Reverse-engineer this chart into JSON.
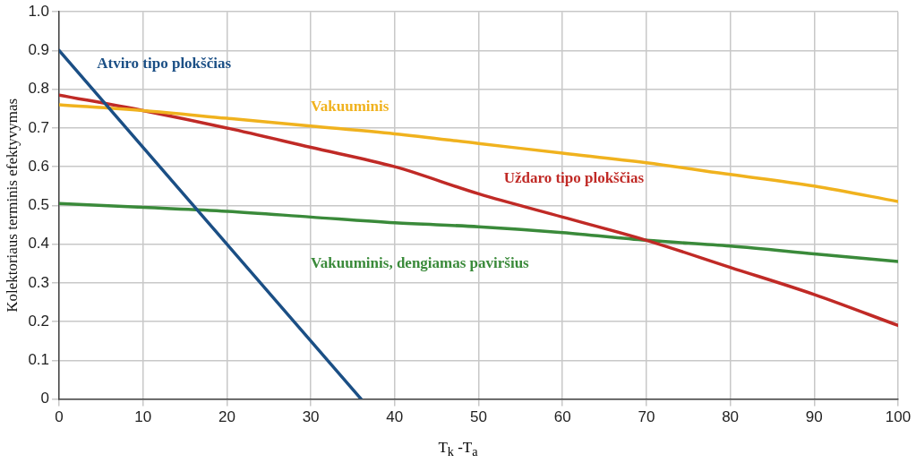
{
  "chart_data": {
    "type": "line",
    "xlabel": "T$_{k}$ -T$_{a}$",
    "ylabel": "Kolektoriaus terminis efektyvymas",
    "xlim": [
      0,
      100
    ],
    "xticks": [
      0,
      10,
      20,
      30,
      40,
      50,
      60,
      70,
      80,
      90,
      100
    ],
    "ylim": [
      0,
      1
    ],
    "yticks": [
      0,
      0.1,
      0.2,
      0.3,
      0.4,
      0.5,
      0.6,
      0.7,
      0.8,
      0.9,
      {
        "value": 1,
        "label": "1.0"
      }
    ],
    "grid": true,
    "legend": false,
    "marker": "none",
    "line_style": "solid",
    "series": [
      {
        "name": "Atviro tipo plokščias",
        "color": "#1b4f85",
        "x": [
          0,
          36
        ],
        "values": [
          0.9,
          0
        ]
      },
      {
        "name": "Vakuuminis",
        "color": "#f0b21e",
        "x": [
          0,
          10,
          20,
          30,
          40,
          50,
          60,
          70,
          80,
          90,
          100
        ],
        "values": [
          0.76,
          0.745,
          0.725,
          0.705,
          0.685,
          0.66,
          0.635,
          0.61,
          0.58,
          0.55,
          0.51
        ]
      },
      {
        "name": "Uždaro tipo plokščias",
        "color": "#c02a26",
        "x": [
          0,
          10,
          20,
          30,
          40,
          50,
          60,
          70,
          80,
          90,
          100
        ],
        "values": [
          0.785,
          0.745,
          0.7,
          0.65,
          0.6,
          0.53,
          0.47,
          0.41,
          0.34,
          0.27,
          0.19
        ]
      },
      {
        "name": "Vakuuminis, dengiamas paviršius",
        "color": "#3a8a3a",
        "x": [
          0,
          10,
          20,
          30,
          40,
          50,
          60,
          70,
          80,
          90,
          100
        ],
        "values": [
          0.505,
          0.495,
          0.485,
          0.47,
          0.455,
          0.445,
          0.43,
          0.41,
          0.395,
          0.375,
          0.355
        ]
      }
    ]
  }
}
